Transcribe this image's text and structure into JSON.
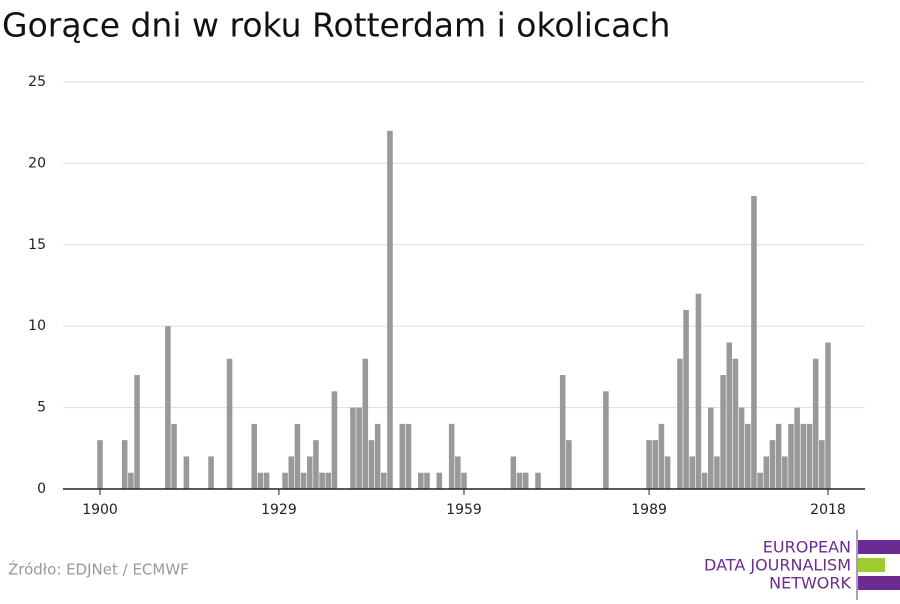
{
  "chart_data": {
    "type": "bar",
    "title": "Gorące dni w roku Rotterdam i okolicach",
    "source": "Źródło: EDJNet / ECMWF",
    "logo": [
      "EUROPEAN",
      "DATA JOURNALISM",
      "NETWORK"
    ],
    "color": "#999999",
    "x": [
      1900,
      1904,
      1905,
      1906,
      1911,
      1912,
      1914,
      1918,
      1921,
      1925,
      1926,
      1927,
      1930,
      1931,
      1932,
      1933,
      1934,
      1935,
      1936,
      1937,
      1938,
      1941,
      1942,
      1943,
      1944,
      1945,
      1946,
      1947,
      1949,
      1950,
      1952,
      1953,
      1955,
      1957,
      1958,
      1959,
      1967,
      1968,
      1969,
      1971,
      1975,
      1976,
      1982,
      1989,
      1990,
      1991,
      1992,
      1994,
      1995,
      1996,
      1997,
      1998,
      1999,
      2000,
      2001,
      2002,
      2003,
      2004,
      2005,
      2006,
      2007,
      2008,
      2009,
      2010,
      2011,
      2012,
      2013,
      2014,
      2015,
      2016,
      2017,
      2018
    ],
    "values": [
      3,
      3,
      1,
      7,
      10,
      4,
      2,
      2,
      8,
      4,
      1,
      1,
      1,
      2,
      4,
      1,
      2,
      3,
      1,
      1,
      6,
      5,
      5,
      8,
      3,
      4,
      1,
      22,
      4,
      4,
      1,
      1,
      1,
      4,
      2,
      1,
      2,
      1,
      1,
      1,
      7,
      3,
      6,
      3,
      3,
      4,
      2,
      8,
      11,
      2,
      12,
      1,
      5,
      2,
      7,
      9,
      8,
      5,
      4,
      18,
      1,
      2,
      3,
      4,
      2,
      4,
      5,
      4,
      4,
      8,
      3,
      9
    ],
    "xlim": [
      1894,
      2024
    ],
    "xticks": [
      1900,
      1929,
      1959,
      1989,
      2018
    ],
    "ylim": [
      0,
      25
    ],
    "yticks": [
      0,
      5,
      10,
      15,
      20,
      25
    ],
    "grid": true
  }
}
